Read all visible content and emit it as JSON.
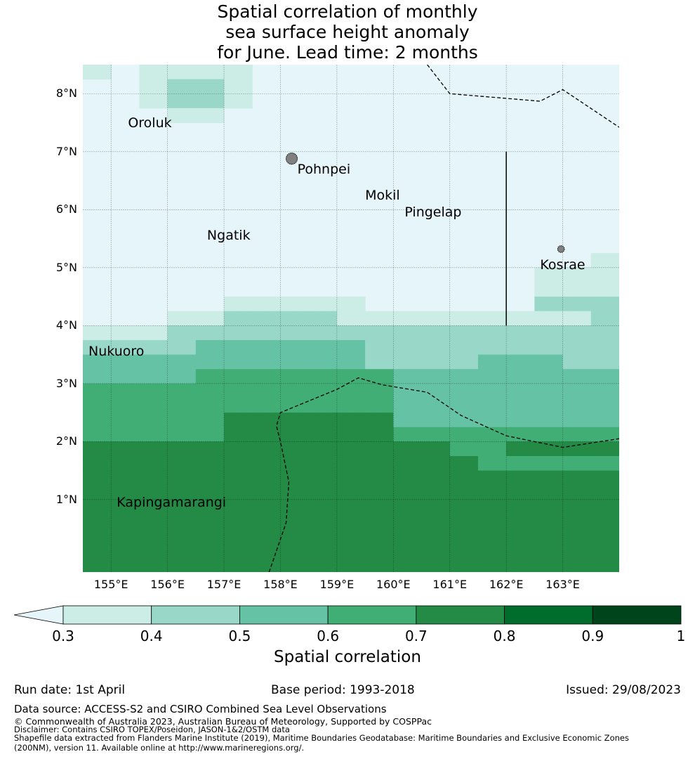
{
  "title_lines": [
    "Spatial correlation of monthly",
    "sea surface height anomaly",
    "for June. Lead time: 2 months"
  ],
  "map": {
    "lon_range": [
      154.5,
      164.0
    ],
    "lat_range": [
      -0.25,
      8.5
    ],
    "lon_ticks": [
      {
        "value": 155,
        "label": "155°E"
      },
      {
        "value": 156,
        "label": "156°E"
      },
      {
        "value": 157,
        "label": "157°E"
      },
      {
        "value": 158,
        "label": "158°E"
      },
      {
        "value": 159,
        "label": "159°E"
      },
      {
        "value": 160,
        "label": "160°E"
      },
      {
        "value": 161,
        "label": "161°E"
      },
      {
        "value": 162,
        "label": "162°E"
      },
      {
        "value": 163,
        "label": "163°E"
      }
    ],
    "lat_ticks": [
      {
        "value": 1,
        "label": "1°N"
      },
      {
        "value": 2,
        "label": "2°N"
      },
      {
        "value": 3,
        "label": "3°N"
      },
      {
        "value": 4,
        "label": "4°N"
      },
      {
        "value": 5,
        "label": "5°N"
      },
      {
        "value": 6,
        "label": "6°N"
      },
      {
        "value": 7,
        "label": "7°N"
      },
      {
        "value": 8,
        "label": "8°N"
      }
    ],
    "places": [
      {
        "name": "Oroluk",
        "lon": 155.3,
        "lat": 7.5
      },
      {
        "name": "Pohnpei",
        "lon": 158.3,
        "lat": 6.7
      },
      {
        "name": "Mokil",
        "lon": 159.5,
        "lat": 6.25
      },
      {
        "name": "Pingelap",
        "lon": 160.2,
        "lat": 5.95
      },
      {
        "name": "Ngatik",
        "lon": 156.7,
        "lat": 5.55
      },
      {
        "name": "Kosrae",
        "lon": 162.6,
        "lat": 5.05
      },
      {
        "name": "Nukuoro",
        "lon": 154.6,
        "lat": 3.55
      },
      {
        "name": "Kapingamarangi",
        "lon": 155.1,
        "lat": 0.95
      }
    ],
    "islands": [
      {
        "name": "Pohnpei",
        "lon": 158.2,
        "lat": 6.88,
        "r": 0.1
      },
      {
        "name": "Kosrae",
        "lon": 162.97,
        "lat": 5.32,
        "r": 0.06
      }
    ],
    "eez_lines": [
      [
        [
          160.6,
          8.5
        ],
        [
          161.0,
          8.0
        ],
        [
          162.6,
          7.87
        ],
        [
          163.0,
          8.07
        ],
        [
          164.0,
          7.42
        ]
      ],
      [
        [
          157.8,
          -0.25
        ],
        [
          158.1,
          0.6
        ],
        [
          158.15,
          1.3
        ],
        [
          158.0,
          2.0
        ],
        [
          157.93,
          2.27
        ],
        [
          158.0,
          2.5
        ],
        [
          158.5,
          2.7
        ],
        [
          159.0,
          2.9
        ],
        [
          159.38,
          3.1
        ],
        [
          159.8,
          2.98
        ],
        [
          160.6,
          2.85
        ],
        [
          161.2,
          2.45
        ],
        [
          162.0,
          2.1
        ],
        [
          163.0,
          1.9
        ],
        [
          164.0,
          2.05
        ]
      ]
    ],
    "boundary_line": [
      [
        162.0,
        7.0
      ],
      [
        162.0,
        4.0
      ]
    ],
    "colors": {
      "below": "#e5f5f9",
      "c03": "#ccece6",
      "c04": "#99d8c9",
      "c05": "#66c2a4",
      "c06": "#41ae76",
      "c07": "#238b45",
      "c08": "#006d2c",
      "c09": "#00441b"
    },
    "grid_bands": [
      {
        "lat_top": 8.5,
        "lat_bottom": 3.5,
        "class": "c03"
      }
    ]
  },
  "colorbar": {
    "ticks": [
      "0.3",
      "0.4",
      "0.5",
      "0.6",
      "0.7",
      "0.8",
      "0.9",
      "1"
    ],
    "label": "Spatial correlation"
  },
  "meta": {
    "run_date": "Run date: 1st April",
    "base_period": "Base period: 1993-2018",
    "issued": "Issued: 29/08/2023"
  },
  "footer": {
    "data_source": "Data source: ACCESS-S2 and CSIRO Combined Sea Level Observations",
    "copyright": "© Commonwealth of Australia 2023, Australian Bureau of Meteorology, Supported by COSPPac",
    "disclaimer": "Disclaimer: Contains CSIRO TOPEX/Poseidon, JASON-1&2/OSTM data",
    "shapefile_1": "Shapefile data extracted from Flanders Marine Institute (2019), Maritime Boundaries Geodatabase: Maritime Boundaries and Exclusive Economic Zones",
    "shapefile_2": "(200NM), version 11. Available online at http://www.marineregions.org/."
  }
}
